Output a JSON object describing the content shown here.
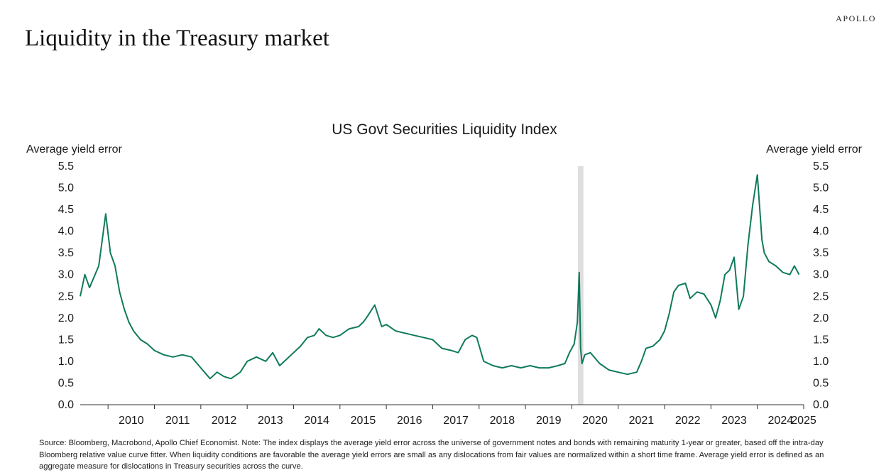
{
  "brand": "APOLLO",
  "page_title": "Liquidity in the Treasury market",
  "chart_data": {
    "type": "line",
    "title": "US Govt Securities Liquidity Index",
    "ylabel_left": "Average yield error",
    "ylabel_right": "Average yield error",
    "ylim": [
      0,
      5.5
    ],
    "yticks": [
      "0.0",
      "0.5",
      "1.0",
      "1.5",
      "2.0",
      "2.5",
      "3.0",
      "3.5",
      "4.0",
      "4.5",
      "5.0",
      "5.5"
    ],
    "xlim": [
      2009.4,
      2025.0
    ],
    "xticks": [
      "2010",
      "2011",
      "2012",
      "2013",
      "2014",
      "2015",
      "2016",
      "2017",
      "2018",
      "2019",
      "2020",
      "2021",
      "2022",
      "2023",
      "2024",
      "2025"
    ],
    "shaded_period": [
      2020.13,
      2020.25
    ],
    "series": [
      {
        "name": "US Govt Securities Liquidity Index",
        "color": "#0f7a5c",
        "x": [
          2009.4,
          2009.5,
          2009.6,
          2009.8,
          2009.95,
          2010.05,
          2010.15,
          2010.25,
          2010.35,
          2010.45,
          2010.55,
          2010.7,
          2010.85,
          2011.0,
          2011.2,
          2011.4,
          2011.6,
          2011.8,
          2012.0,
          2012.2,
          2012.35,
          2012.5,
          2012.65,
          2012.85,
          2013.0,
          2013.2,
          2013.4,
          2013.55,
          2013.7,
          2013.85,
          2014.0,
          2014.15,
          2014.3,
          2014.45,
          2014.55,
          2014.7,
          2014.85,
          2015.0,
          2015.2,
          2015.4,
          2015.5,
          2015.6,
          2015.75,
          2015.9,
          2016.0,
          2016.2,
          2016.4,
          2016.6,
          2016.8,
          2017.0,
          2017.2,
          2017.4,
          2017.55,
          2017.7,
          2017.85,
          2017.95,
          2018.1,
          2018.3,
          2018.5,
          2018.7,
          2018.9,
          2019.1,
          2019.3,
          2019.5,
          2019.7,
          2019.85,
          2019.95,
          2020.05,
          2020.12,
          2020.16,
          2020.19,
          2020.22,
          2020.28,
          2020.4,
          2020.6,
          2020.8,
          2021.0,
          2021.2,
          2021.4,
          2021.5,
          2021.6,
          2021.75,
          2021.9,
          2022.0,
          2022.1,
          2022.2,
          2022.3,
          2022.45,
          2022.55,
          2022.7,
          2022.85,
          2023.0,
          2023.1,
          2023.2,
          2023.3,
          2023.4,
          2023.5,
          2023.6,
          2023.7,
          2023.8,
          2023.9,
          2024.0,
          2024.1,
          2024.15,
          2024.25,
          2024.4,
          2024.55,
          2024.7,
          2024.8,
          2024.9
        ],
        "values": [
          2.5,
          3.0,
          2.7,
          3.2,
          4.4,
          3.5,
          3.2,
          2.6,
          2.2,
          1.9,
          1.7,
          1.5,
          1.4,
          1.25,
          1.15,
          1.1,
          1.15,
          1.1,
          0.85,
          0.6,
          0.75,
          0.65,
          0.6,
          0.75,
          1.0,
          1.1,
          1.0,
          1.2,
          0.9,
          1.05,
          1.2,
          1.35,
          1.55,
          1.6,
          1.75,
          1.6,
          1.55,
          1.6,
          1.75,
          1.8,
          1.9,
          2.05,
          2.3,
          1.8,
          1.85,
          1.7,
          1.65,
          1.6,
          1.55,
          1.5,
          1.3,
          1.25,
          1.2,
          1.5,
          1.6,
          1.55,
          1.0,
          0.9,
          0.85,
          0.9,
          0.85,
          0.9,
          0.85,
          0.85,
          0.9,
          0.95,
          1.2,
          1.4,
          1.9,
          3.05,
          1.3,
          0.95,
          1.15,
          1.2,
          0.95,
          0.8,
          0.75,
          0.7,
          0.75,
          1.0,
          1.3,
          1.35,
          1.5,
          1.7,
          2.1,
          2.6,
          2.75,
          2.8,
          2.45,
          2.6,
          2.55,
          2.3,
          2.0,
          2.4,
          3.0,
          3.1,
          3.4,
          2.2,
          2.5,
          3.7,
          4.6,
          5.3,
          3.8,
          3.5,
          3.3,
          3.2,
          3.05,
          3.0,
          3.2,
          3.0
        ]
      }
    ]
  },
  "source_note": "Source: Bloomberg, Macrobond, Apollo Chief Economist. Note: The index displays the average yield error across the universe of government notes and bonds with remaining maturity 1-year or greater, based off the intra-day Bloomberg relative value curve fitter. When liquidity conditions are favorable the average yield errors are small as any dislocations from fair values are normalized within a short time frame. Average yield error is defined as an aggregate measure for dislocations in Treasury securities across the curve."
}
